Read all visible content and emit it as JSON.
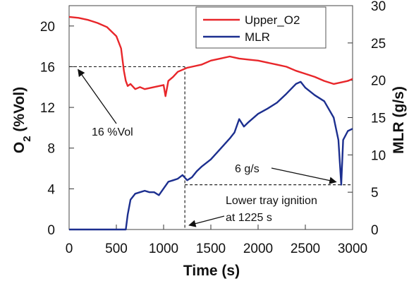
{
  "chart_data": {
    "type": "line",
    "xlabel": "Time (s)",
    "ylabel_left": "O2 (%Vol)",
    "ylabel_right": "MLR (g/s)",
    "xlim": [
      0,
      3000
    ],
    "ylim_left": [
      0,
      22
    ],
    "ylim_right": [
      0,
      30
    ],
    "xticks": [
      "0",
      "500",
      "1000",
      "1500",
      "2000",
      "2500",
      "3000"
    ],
    "yticks_left": [
      "0",
      "4",
      "8",
      "12",
      "16",
      "20"
    ],
    "yticks_right": [
      "0",
      "5",
      "10",
      "15",
      "20",
      "25",
      "30"
    ],
    "grid": false,
    "legend_position": "top-right",
    "colors": {
      "Upper_O2": "#e8262a",
      "MLR": "#1c2f8f"
    },
    "series": [
      {
        "name": "Upper_O2",
        "axis": "left",
        "x": [
          0,
          100,
          200,
          300,
          400,
          500,
          550,
          580,
          600,
          620,
          650,
          700,
          750,
          800,
          900,
          1000,
          1020,
          1050,
          1100,
          1150,
          1200,
          1250,
          1300,
          1400,
          1500,
          1600,
          1700,
          1800,
          1900,
          2000,
          2100,
          2200,
          2300,
          2400,
          2500,
          2600,
          2700,
          2800,
          2900,
          2950,
          3000
        ],
        "values": [
          20.9,
          20.8,
          20.6,
          20.3,
          19.9,
          19.0,
          17.8,
          15.6,
          14.6,
          14.1,
          14.3,
          13.8,
          14.0,
          13.8,
          14.0,
          14.2,
          13.1,
          14.6,
          15.0,
          15.5,
          15.7,
          15.9,
          16.0,
          16.2,
          16.6,
          16.8,
          17.0,
          16.8,
          16.7,
          16.6,
          16.4,
          16.2,
          16.0,
          15.6,
          15.3,
          15.0,
          14.6,
          14.3,
          14.5,
          14.6,
          14.8
        ]
      },
      {
        "name": "MLR",
        "axis": "right",
        "x": [
          0,
          200,
          400,
          600,
          620,
          650,
          700,
          750,
          800,
          850,
          900,
          950,
          1000,
          1050,
          1100,
          1150,
          1200,
          1250,
          1300,
          1350,
          1400,
          1500,
          1600,
          1700,
          1750,
          1800,
          1850,
          1900,
          2000,
          2100,
          2200,
          2300,
          2400,
          2450,
          2500,
          2600,
          2700,
          2800,
          2850,
          2880,
          2900,
          2950,
          3000
        ],
        "values": [
          0,
          0,
          0,
          0,
          2,
          4,
          4.8,
          5.0,
          5.2,
          5.0,
          5.0,
          4.6,
          5.5,
          6.4,
          6.6,
          6.8,
          7.3,
          6.6,
          7.0,
          7.8,
          8.4,
          9.4,
          10.8,
          12.2,
          13.0,
          14.8,
          13.8,
          14.4,
          15.5,
          16.2,
          17.0,
          18.2,
          19.5,
          19.8,
          19.0,
          18.0,
          17.2,
          15.0,
          12.0,
          6.0,
          12.0,
          13.2,
          13.5
        ]
      }
    ],
    "annotations": [
      {
        "text": "16 %Vol",
        "arrow_to": {
          "x": 50,
          "y": 16,
          "axis": "left"
        }
      },
      {
        "text": "6 g/s",
        "arrow_to": {
          "x": 2870,
          "y": 6,
          "axis": "right"
        }
      },
      {
        "text_line1": "Lower tray ignition",
        "text_line2": "at 1225 s",
        "arrow_to": {
          "x": 1225,
          "y": 0,
          "axis": "left"
        }
      }
    ],
    "reference_lines": {
      "horizontal_o2": 16,
      "horizontal_mlr": 6,
      "vertical_time": 1225
    }
  }
}
